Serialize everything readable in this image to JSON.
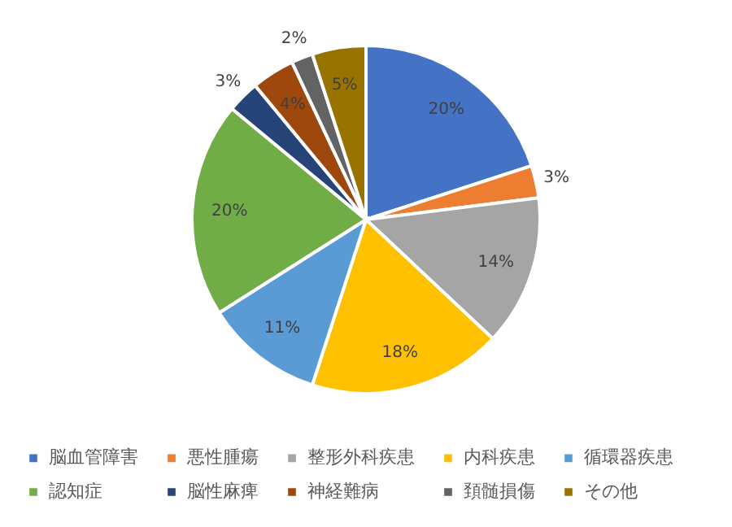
{
  "chart_data": {
    "type": "pie",
    "categories": [
      "脳血管障害",
      "悪性腫瘍",
      "整形外科疾患",
      "内科疾患",
      "循環器疾患",
      "認知症",
      "脳性麻痺",
      "神経難病",
      "頚髄損傷",
      "その他"
    ],
    "values": [
      20,
      3,
      14,
      18,
      11,
      20,
      3,
      4,
      2,
      5
    ],
    "value_labels": [
      "20%",
      "3%",
      "14%",
      "18%",
      "11%",
      "20%",
      "3%",
      "4%",
      "2%",
      "5%"
    ],
    "colors": [
      "#4472c4",
      "#ed7d31",
      "#a5a5a5",
      "#ffc000",
      "#5b9bd5",
      "#70ad47",
      "#264478",
      "#9e480e",
      "#636363",
      "#997300"
    ],
    "legend": "bottom"
  }
}
